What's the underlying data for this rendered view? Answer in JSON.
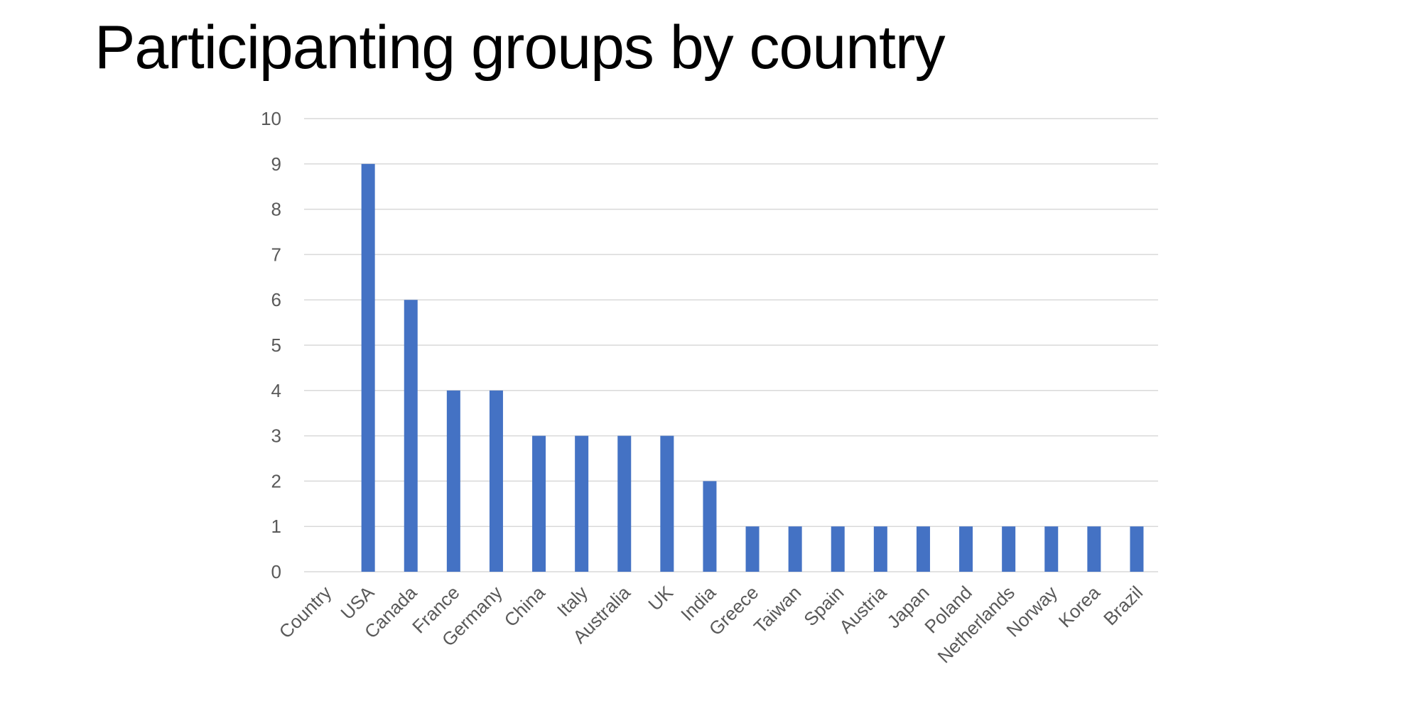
{
  "title": "Participanting groups by country",
  "colors": {
    "bar": "#4472C4",
    "grid": "#D9D9D9",
    "tick_text": "#595959"
  },
  "chart_data": {
    "type": "bar",
    "title": "",
    "xlabel": "",
    "ylabel": "",
    "ylim": [
      0,
      10
    ],
    "yticks": [
      0,
      1,
      2,
      3,
      4,
      5,
      6,
      7,
      8,
      9,
      10
    ],
    "grid": true,
    "legend": "none",
    "categories": [
      "Country",
      "USA",
      "Canada",
      "France",
      "Germany",
      "China",
      "Italy",
      "Australia",
      "UK",
      "India",
      "Greece",
      "Taiwan",
      "Spain",
      "Austria",
      "Japan",
      "Poland",
      "Netherlands",
      "Norway",
      "Korea",
      "Brazil"
    ],
    "values": [
      0,
      9,
      6,
      4,
      4,
      3,
      3,
      3,
      3,
      2,
      1,
      1,
      1,
      1,
      1,
      1,
      1,
      1,
      1,
      1
    ]
  }
}
